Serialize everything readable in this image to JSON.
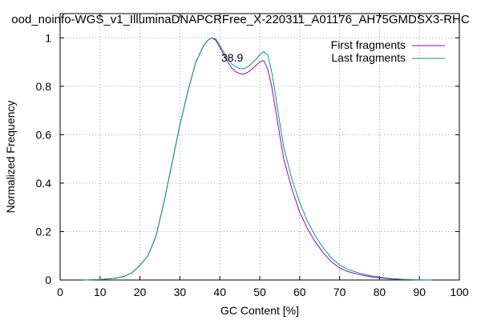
{
  "chart_data": {
    "type": "line",
    "title": "ood_noinfo-WGS_v1_IlluminaDNAPCRFree_X-220311_A01176_AH75GMDSX3-RHC",
    "xlabel": "GC Content [%]",
    "ylabel": "Normalized Frequency",
    "xlim": [
      0,
      100
    ],
    "ylim": [
      0,
      1.1
    ],
    "x_ticks": [
      "0",
      "10",
      "20",
      "30",
      "40",
      "50",
      "60",
      "70",
      "80",
      "90",
      "100"
    ],
    "y_ticks": [
      "0",
      "0.2",
      "0.4",
      "0.6",
      "0.8",
      "1"
    ],
    "grid": true,
    "legend_position": "top-right",
    "annotation": "38.9",
    "series": [
      {
        "name": "First fragments",
        "color": "#9400d3",
        "x": [
          6,
          10,
          14,
          16,
          18,
          20,
          22,
          24,
          26,
          28,
          30,
          32,
          34,
          36,
          37,
          38,
          39,
          40,
          41,
          42,
          43,
          44,
          45,
          46,
          47,
          48,
          49,
          50,
          51,
          52,
          53,
          54,
          55,
          56,
          58,
          60,
          62,
          64,
          66,
          68,
          70,
          72,
          75,
          78,
          80,
          83,
          86,
          90
        ],
        "y": [
          0.0,
          0.002,
          0.008,
          0.015,
          0.03,
          0.06,
          0.1,
          0.18,
          0.32,
          0.48,
          0.64,
          0.78,
          0.9,
          0.97,
          0.99,
          1.0,
          0.99,
          0.96,
          0.93,
          0.9,
          0.875,
          0.86,
          0.852,
          0.85,
          0.858,
          0.87,
          0.885,
          0.9,
          0.906,
          0.87,
          0.8,
          0.7,
          0.6,
          0.5,
          0.38,
          0.28,
          0.21,
          0.155,
          0.11,
          0.075,
          0.05,
          0.035,
          0.022,
          0.013,
          0.009,
          0.004,
          0.002,
          0.0
        ]
      },
      {
        "name": "Last fragments",
        "color": "#009e73",
        "x": [
          6,
          10,
          14,
          16,
          18,
          20,
          22,
          24,
          26,
          28,
          30,
          32,
          34,
          36,
          37,
          38,
          39,
          40,
          41,
          42,
          43,
          44,
          45,
          46,
          47,
          48,
          49,
          50,
          51,
          52,
          53,
          54,
          55,
          56,
          58,
          60,
          62,
          64,
          66,
          68,
          70,
          72,
          75,
          78,
          80,
          83,
          86,
          90,
          93
        ],
        "y": [
          0.0,
          0.002,
          0.008,
          0.015,
          0.03,
          0.06,
          0.1,
          0.18,
          0.32,
          0.48,
          0.64,
          0.78,
          0.9,
          0.97,
          0.99,
          1.0,
          0.995,
          0.97,
          0.94,
          0.915,
          0.892,
          0.88,
          0.873,
          0.872,
          0.88,
          0.895,
          0.91,
          0.93,
          0.942,
          0.93,
          0.86,
          0.76,
          0.65,
          0.55,
          0.42,
          0.32,
          0.24,
          0.18,
          0.13,
          0.09,
          0.062,
          0.044,
          0.028,
          0.017,
          0.012,
          0.006,
          0.003,
          0.001,
          0.0
        ]
      }
    ]
  }
}
